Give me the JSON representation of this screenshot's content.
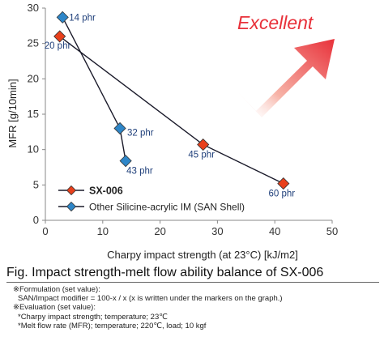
{
  "chart_data": {
    "type": "line",
    "xlabel": "Charpy impact strength (at 23°C) [kJ/m2]",
    "ylabel": "MFR [g/10min]",
    "xlim": [
      0,
      50
    ],
    "ylim": [
      0,
      30
    ],
    "xticks": [
      "0",
      "10",
      "20",
      "30",
      "40",
      "50"
    ],
    "yticks": [
      "0",
      "5",
      "10",
      "15",
      "20",
      "25",
      "30"
    ],
    "grid": false,
    "legend_position": "bottom-left",
    "series": [
      {
        "name": "SX-006",
        "color": "#e8401c",
        "marker": "diamond",
        "points": [
          {
            "x": 2.5,
            "y": 26.0,
            "label": "20 phr"
          },
          {
            "x": 27.5,
            "y": 10.7,
            "label": "45 phr"
          },
          {
            "x": 41.5,
            "y": 5.2,
            "label": "60 phr"
          }
        ]
      },
      {
        "name": "Other Silicine-acrylic IM (SAN Shell)",
        "color": "#2e86c8",
        "marker": "diamond",
        "points": [
          {
            "x": 3.0,
            "y": 28.7,
            "label": "14 phr"
          },
          {
            "x": 13.0,
            "y": 13.0,
            "label": "32 phr"
          },
          {
            "x": 14.0,
            "y": 8.4,
            "label": "43 phr"
          }
        ]
      }
    ],
    "annotation": "Excellent"
  },
  "caption": "Fig.  Impact strength-melt flow ability balance of SX-006",
  "notes": [
    "※Formulation (set value):",
    "SAN/Impact modifier = 100-x / x (x is written under the markers on the graph.)",
    "※Evaluation (set value):",
    "*Charpy impact strength; temperature; 23℃",
    "*Melt flow rate (MFR); temperature; 220℃, load; 10 kgf"
  ]
}
